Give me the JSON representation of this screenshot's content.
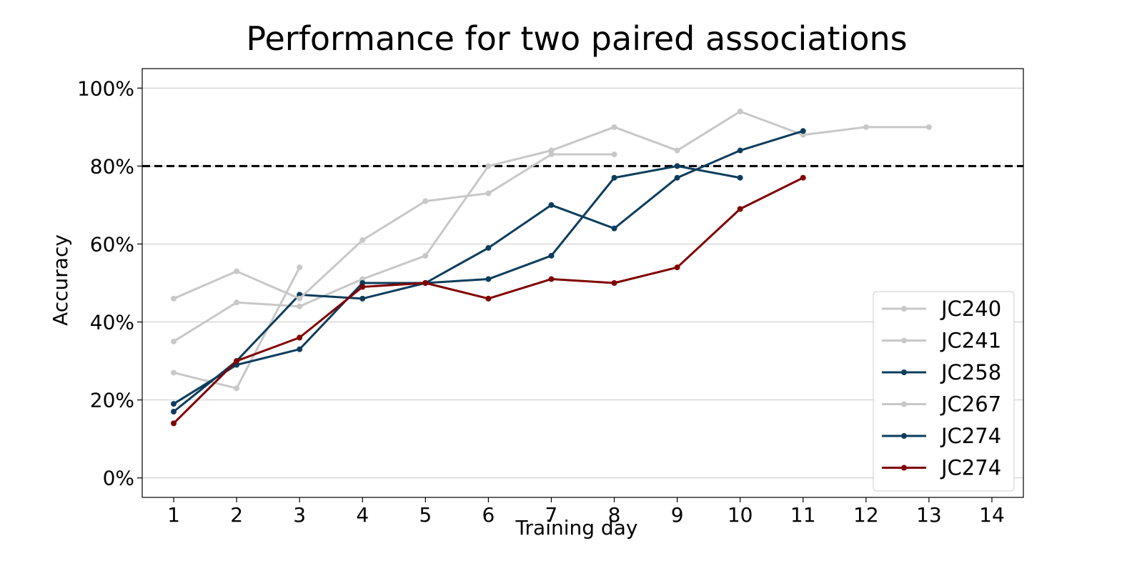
{
  "chart_data": {
    "type": "line",
    "title": "Performance for two paired associations",
    "xlabel": "Training day",
    "ylabel": "Accuracy",
    "xlim": [
      0.5,
      14.5
    ],
    "ylim": [
      -5,
      105
    ],
    "xticks": [
      1,
      2,
      3,
      4,
      5,
      6,
      7,
      8,
      9,
      10,
      11,
      12,
      13,
      14
    ],
    "yticks": [
      0,
      20,
      40,
      60,
      80,
      100
    ],
    "ytick_labels": [
      "0%",
      "20%",
      "40%",
      "60%",
      "80%",
      "100%"
    ],
    "grid": "horizontal",
    "threshold": 80,
    "legend_position": "lower-right",
    "series": [
      {
        "name": "JC240",
        "color": "#c8c8c8",
        "x": [
          1,
          2,
          3,
          4,
          5,
          6,
          7,
          8,
          9,
          10,
          11,
          12,
          13
        ],
        "y": [
          35,
          45,
          44,
          51,
          57,
          80,
          84,
          90,
          84,
          94,
          88,
          90,
          90
        ]
      },
      {
        "name": "JC241",
        "color": "#c8c8c8",
        "x": [
          1,
          2,
          3
        ],
        "y": [
          27,
          23,
          54
        ]
      },
      {
        "name": "JC258",
        "color": "#0d3d5c",
        "x": [
          1,
          2,
          3,
          4,
          5,
          6,
          7,
          8,
          9,
          10
        ],
        "y": [
          17,
          30,
          47,
          46,
          50,
          51,
          57,
          77,
          80,
          77
        ]
      },
      {
        "name": "JC267",
        "color": "#c8c8c8",
        "x": [
          1,
          2,
          3,
          4,
          5,
          6,
          7,
          8
        ],
        "y": [
          46,
          53,
          46,
          61,
          71,
          73,
          83,
          83
        ]
      },
      {
        "name": "JC274",
        "color": "#0d3d5c",
        "x": [
          1,
          2,
          3,
          4,
          5,
          6,
          7,
          8,
          9,
          10,
          11
        ],
        "y": [
          19,
          29,
          33,
          50,
          50,
          59,
          70,
          64,
          77,
          84,
          89
        ]
      },
      {
        "name": "JC274",
        "color": "#800000",
        "x": [
          1,
          2,
          3,
          4,
          5,
          6,
          7,
          8,
          9,
          10,
          11
        ],
        "y": [
          14,
          30,
          36,
          49,
          50,
          46,
          51,
          50,
          54,
          69,
          77
        ]
      }
    ]
  }
}
